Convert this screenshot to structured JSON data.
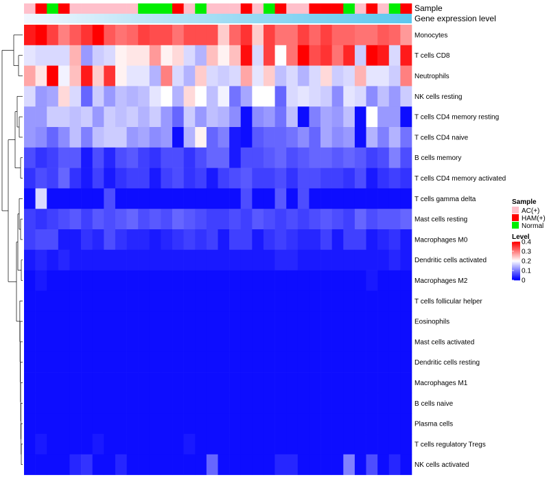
{
  "chart_data": {
    "type": "heatmap",
    "annotation_track_labels": [
      "Sample",
      "Gene expression level"
    ],
    "rows": [
      "Monocytes",
      "T cells CD8",
      "Neutrophils",
      "NK cells resting",
      "T cells CD4 memory resting",
      "T cells CD4 naive",
      "B cells memory",
      "T cells CD4 memory activated",
      "T cells gamma delta",
      "Mast cells resting",
      "Macrophages M0",
      "Dendritic cells activated",
      "Macrophages M2",
      "T cells follicular helper",
      "Eosinophils",
      "Mast cells activated",
      "Dendritic cells resting",
      "Macrophages M1",
      "B cells naive",
      "Plasma cells",
      "T cells regulatory  Tregs",
      "NK cells activated"
    ],
    "columns_count": 34,
    "samples": [
      "AC(+)",
      "HAM(+)",
      "Normal",
      "HAM(+)",
      "AC(+)",
      "AC(+)",
      "AC(+)",
      "AC(+)",
      "AC(+)",
      "AC(+)",
      "Normal",
      "Normal",
      "Normal",
      "HAM(+)",
      "AC(+)",
      "Normal",
      "AC(+)",
      "AC(+)",
      "AC(+)",
      "HAM(+)",
      "AC(+)",
      "Normal",
      "HAM(+)",
      "AC(+)",
      "AC(+)",
      "HAM(+)",
      "HAM(+)",
      "HAM(+)",
      "Normal",
      "AC(+)",
      "HAM(+)",
      "AC(+)",
      "Normal",
      "HAM(+)"
    ],
    "values": [
      [
        0.38,
        0.4,
        0.35,
        0.3,
        0.33,
        0.36,
        0.4,
        0.33,
        0.31,
        0.32,
        0.35,
        0.34,
        0.34,
        0.31,
        0.34,
        0.34,
        0.34,
        0.24,
        0.32,
        0.36,
        0.24,
        0.35,
        0.31,
        0.31,
        0.35,
        0.32,
        0.35,
        0.32,
        0.32,
        0.31,
        0.31,
        0.33,
        0.32,
        0.28
      ],
      [
        0.18,
        0.17,
        0.17,
        0.17,
        0.26,
        0.12,
        0.16,
        0.17,
        0.21,
        0.22,
        0.22,
        0.28,
        0.21,
        0.23,
        0.17,
        0.14,
        0.25,
        0.21,
        0.25,
        0.39,
        0.17,
        0.35,
        0.2,
        0.31,
        0.4,
        0.34,
        0.36,
        0.31,
        0.37,
        0.16,
        0.4,
        0.38,
        0.17,
        0.38
      ],
      [
        0.27,
        0.22,
        0.4,
        0.19,
        0.25,
        0.38,
        0.24,
        0.36,
        0.21,
        0.18,
        0.18,
        0.14,
        0.3,
        0.17,
        0.14,
        0.24,
        0.17,
        0.16,
        0.17,
        0.27,
        0.18,
        0.24,
        0.15,
        0.17,
        0.14,
        0.17,
        0.23,
        0.16,
        0.17,
        0.26,
        0.18,
        0.18,
        0.16,
        0.3
      ],
      [
        0.17,
        0.12,
        0.13,
        0.23,
        0.17,
        0.08,
        0.16,
        0.12,
        0.15,
        0.14,
        0.15,
        0.18,
        0.2,
        0.14,
        0.23,
        0.2,
        0.15,
        0.19,
        0.09,
        0.13,
        0.2,
        0.2,
        0.08,
        0.17,
        0.18,
        0.17,
        0.16,
        0.11,
        0.18,
        0.17,
        0.11,
        0.15,
        0.12,
        0.16
      ],
      [
        0.12,
        0.12,
        0.16,
        0.16,
        0.15,
        0.16,
        0.12,
        0.16,
        0.15,
        0.16,
        0.14,
        0.16,
        0.12,
        0.08,
        0.16,
        0.12,
        0.15,
        0.14,
        0.11,
        0.01,
        0.11,
        0.12,
        0.09,
        0.15,
        0.01,
        0.1,
        0.13,
        0.12,
        0.15,
        0.01,
        0.2,
        0.12,
        0.12,
        0.01
      ],
      [
        0.12,
        0.11,
        0.08,
        0.11,
        0.15,
        0.1,
        0.15,
        0.16,
        0.16,
        0.12,
        0.13,
        0.11,
        0.12,
        0.01,
        0.14,
        0.21,
        0.08,
        0.1,
        0.02,
        0.01,
        0.07,
        0.08,
        0.08,
        0.09,
        0.11,
        0.08,
        0.13,
        0.11,
        0.12,
        0.01,
        0.14,
        0.1,
        0.14,
        0.09
      ],
      [
        0.06,
        0.04,
        0.05,
        0.07,
        0.07,
        0.02,
        0.06,
        0.03,
        0.06,
        0.07,
        0.05,
        0.04,
        0.06,
        0.06,
        0.04,
        0.06,
        0.08,
        0.08,
        0.02,
        0.06,
        0.06,
        0.07,
        0.08,
        0.06,
        0.07,
        0.08,
        0.08,
        0.07,
        0.08,
        0.07,
        0.05,
        0.06,
        0.1,
        0.06
      ],
      [
        0.04,
        0.06,
        0.05,
        0.08,
        0.04,
        0.02,
        0.05,
        0.02,
        0.04,
        0.05,
        0.05,
        0.02,
        0.05,
        0.06,
        0.04,
        0.05,
        0.02,
        0.05,
        0.06,
        0.07,
        0.05,
        0.05,
        0.06,
        0.04,
        0.06,
        0.06,
        0.05,
        0.05,
        0.04,
        0.06,
        0.02,
        0.04,
        0.05,
        0.04
      ],
      [
        0.01,
        0.17,
        0.01,
        0.01,
        0.01,
        0.01,
        0.01,
        0.06,
        0.01,
        0.01,
        0.01,
        0.01,
        0.01,
        0.01,
        0.01,
        0.01,
        0.01,
        0.01,
        0.01,
        0.06,
        0.01,
        0.01,
        0.07,
        0.01,
        0.06,
        0.01,
        0.01,
        0.01,
        0.01,
        0.01,
        0.01,
        0.01,
        0.01,
        0.01
      ],
      [
        0.05,
        0.04,
        0.05,
        0.06,
        0.07,
        0.05,
        0.07,
        0.06,
        0.07,
        0.08,
        0.06,
        0.07,
        0.06,
        0.08,
        0.07,
        0.06,
        0.05,
        0.05,
        0.06,
        0.05,
        0.07,
        0.06,
        0.05,
        0.06,
        0.05,
        0.06,
        0.07,
        0.06,
        0.05,
        0.08,
        0.06,
        0.07,
        0.07,
        0.08
      ],
      [
        0.05,
        0.06,
        0.06,
        0.02,
        0.02,
        0.04,
        0.03,
        0.06,
        0.04,
        0.03,
        0.03,
        0.02,
        0.03,
        0.04,
        0.05,
        0.04,
        0.05,
        0.02,
        0.05,
        0.05,
        0.02,
        0.04,
        0.05,
        0.04,
        0.03,
        0.03,
        0.05,
        0.02,
        0.05,
        0.05,
        0.02,
        0.03,
        0.04,
        0.02
      ],
      [
        0.02,
        0.03,
        0.02,
        0.03,
        0.02,
        0.02,
        0.02,
        0.02,
        0.02,
        0.02,
        0.02,
        0.02,
        0.02,
        0.02,
        0.02,
        0.02,
        0.02,
        0.02,
        0.02,
        0.02,
        0.02,
        0.02,
        0.03,
        0.03,
        0.02,
        0.02,
        0.02,
        0.02,
        0.02,
        0.02,
        0.02,
        0.02,
        0.03,
        0.02
      ],
      [
        0.01,
        0.02,
        0.01,
        0.01,
        0.01,
        0.01,
        0.01,
        0.01,
        0.01,
        0.01,
        0.01,
        0.01,
        0.01,
        0.01,
        0.01,
        0.01,
        0.01,
        0.01,
        0.01,
        0.01,
        0.01,
        0.01,
        0.01,
        0.01,
        0.01,
        0.01,
        0.01,
        0.01,
        0.01,
        0.01,
        0.02,
        0.01,
        0.01,
        0.01
      ],
      [
        0.01,
        0.01,
        0.01,
        0.01,
        0.01,
        0.01,
        0.01,
        0.01,
        0.01,
        0.01,
        0.01,
        0.01,
        0.01,
        0.01,
        0.01,
        0.01,
        0.01,
        0.01,
        0.01,
        0.01,
        0.01,
        0.01,
        0.01,
        0.01,
        0.01,
        0.01,
        0.01,
        0.01,
        0.01,
        0.01,
        0.01,
        0.01,
        0.01,
        0.01
      ],
      [
        0.01,
        0.01,
        0.01,
        0.01,
        0.01,
        0.01,
        0.01,
        0.01,
        0.01,
        0.01,
        0.01,
        0.01,
        0.01,
        0.01,
        0.01,
        0.01,
        0.01,
        0.01,
        0.01,
        0.01,
        0.01,
        0.01,
        0.01,
        0.01,
        0.01,
        0.01,
        0.01,
        0.01,
        0.01,
        0.01,
        0.01,
        0.01,
        0.01,
        0.01
      ],
      [
        0.01,
        0.01,
        0.01,
        0.01,
        0.01,
        0.01,
        0.01,
        0.01,
        0.01,
        0.01,
        0.01,
        0.01,
        0.01,
        0.01,
        0.01,
        0.01,
        0.01,
        0.01,
        0.01,
        0.01,
        0.01,
        0.01,
        0.01,
        0.01,
        0.01,
        0.01,
        0.01,
        0.01,
        0.01,
        0.01,
        0.01,
        0.01,
        0.01,
        0.01
      ],
      [
        0.01,
        0.01,
        0.01,
        0.01,
        0.01,
        0.01,
        0.01,
        0.01,
        0.01,
        0.01,
        0.01,
        0.01,
        0.01,
        0.01,
        0.01,
        0.01,
        0.01,
        0.01,
        0.01,
        0.01,
        0.01,
        0.01,
        0.01,
        0.01,
        0.01,
        0.01,
        0.01,
        0.01,
        0.01,
        0.01,
        0.01,
        0.01,
        0.01,
        0.01
      ],
      [
        0.01,
        0.01,
        0.01,
        0.01,
        0.01,
        0.01,
        0.01,
        0.01,
        0.01,
        0.01,
        0.01,
        0.01,
        0.01,
        0.01,
        0.01,
        0.01,
        0.01,
        0.01,
        0.01,
        0.01,
        0.01,
        0.01,
        0.01,
        0.01,
        0.01,
        0.01,
        0.01,
        0.01,
        0.01,
        0.01,
        0.01,
        0.01,
        0.01,
        0.01
      ],
      [
        0.01,
        0.01,
        0.01,
        0.01,
        0.01,
        0.01,
        0.01,
        0.01,
        0.01,
        0.01,
        0.01,
        0.01,
        0.01,
        0.01,
        0.01,
        0.01,
        0.01,
        0.01,
        0.01,
        0.01,
        0.01,
        0.01,
        0.01,
        0.01,
        0.01,
        0.01,
        0.01,
        0.01,
        0.01,
        0.01,
        0.01,
        0.01,
        0.01,
        0.01
      ],
      [
        0.01,
        0.01,
        0.01,
        0.01,
        0.01,
        0.01,
        0.01,
        0.01,
        0.01,
        0.01,
        0.01,
        0.01,
        0.01,
        0.01,
        0.01,
        0.01,
        0.01,
        0.01,
        0.01,
        0.01,
        0.01,
        0.01,
        0.01,
        0.01,
        0.01,
        0.01,
        0.01,
        0.01,
        0.01,
        0.01,
        0.01,
        0.01,
        0.01,
        0.01
      ],
      [
        0.01,
        0.02,
        0.01,
        0.01,
        0.01,
        0.01,
        0.02,
        0.01,
        0.01,
        0.01,
        0.01,
        0.01,
        0.01,
        0.01,
        0.02,
        0.01,
        0.01,
        0.01,
        0.01,
        0.01,
        0.01,
        0.01,
        0.01,
        0.01,
        0.01,
        0.01,
        0.01,
        0.01,
        0.01,
        0.01,
        0.01,
        0.01,
        0.01,
        0.01
      ],
      [
        0.01,
        0.01,
        0.01,
        0.01,
        0.03,
        0.04,
        0.01,
        0.01,
        0.03,
        0.01,
        0.01,
        0.01,
        0.01,
        0.01,
        0.01,
        0.01,
        0.08,
        0.01,
        0.01,
        0.01,
        0.01,
        0.01,
        0.03,
        0.03,
        0.01,
        0.01,
        0.01,
        0.01,
        0.1,
        0.01,
        0.06,
        0.01,
        0.03,
        0.01
      ]
    ],
    "legend": {
      "sample_title": "Sample",
      "sample_entries": [
        {
          "label": "AC(+)",
          "color": "#ffc0cb"
        },
        {
          "label": "HAM(+)",
          "color": "#ff0000"
        },
        {
          "label": "Normal",
          "color": "#00ee00"
        }
      ],
      "level_title": "Level",
      "level_ticks": [
        "0.4",
        "0.3",
        "0.2",
        "0.1",
        "0"
      ],
      "range": [
        0,
        0.4
      ]
    },
    "colors": {
      "low": "#0000ff",
      "mid": "#ffffff",
      "high": "#ff0000",
      "expression_track": "#5bc7ee"
    }
  }
}
